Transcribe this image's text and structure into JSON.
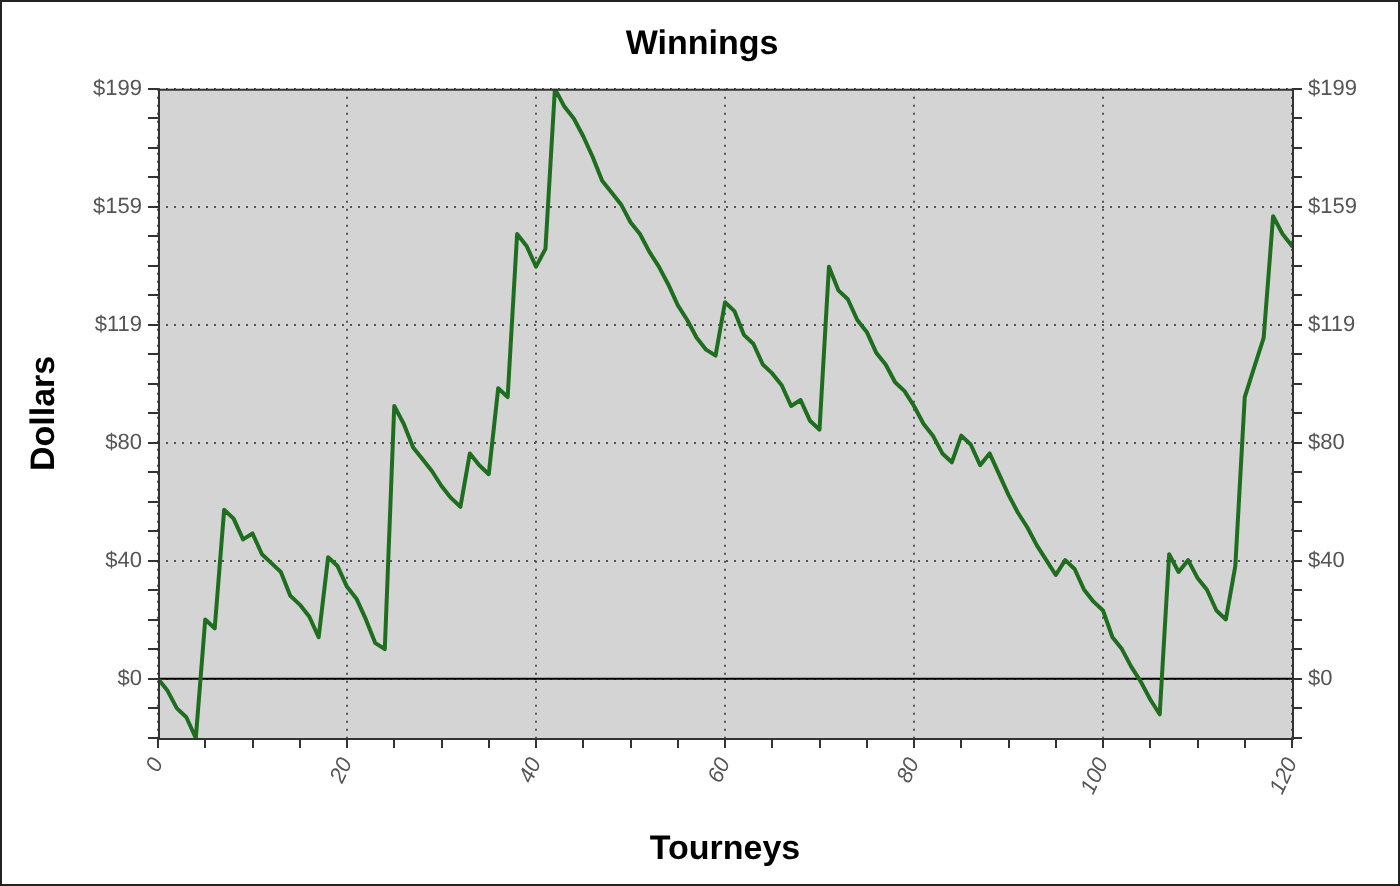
{
  "chart_data": {
    "type": "line",
    "title": "Winnings",
    "xlabel": "Tourneys",
    "ylabel": "Dollars",
    "x": [
      0,
      1,
      2,
      3,
      4,
      5,
      6,
      7,
      8,
      9,
      10,
      11,
      12,
      13,
      14,
      15,
      16,
      17,
      18,
      19,
      20,
      21,
      22,
      23,
      24,
      25,
      26,
      27,
      28,
      29,
      30,
      31,
      32,
      33,
      34,
      35,
      36,
      37,
      38,
      39,
      40,
      41,
      42,
      43,
      44,
      45,
      46,
      47,
      48,
      49,
      50,
      51,
      52,
      53,
      54,
      55,
      56,
      57,
      58,
      59,
      60,
      61,
      62,
      63,
      64,
      65,
      66,
      67,
      68,
      69,
      70,
      71,
      72,
      73,
      74,
      75,
      76,
      77,
      78,
      79,
      80,
      81,
      82,
      83,
      84,
      85,
      86,
      87,
      88,
      89,
      90,
      91,
      92,
      93,
      94,
      95,
      96,
      97,
      98,
      99,
      100,
      101,
      102,
      103,
      104,
      105,
      106,
      107,
      108,
      109,
      110,
      111,
      112,
      113,
      114,
      115,
      116,
      117,
      118,
      119,
      120
    ],
    "series": [
      {
        "color": "#1f6e1f",
        "values": [
          0,
          -4,
          -10,
          -13,
          -20,
          20,
          17,
          57,
          54,
          47,
          49,
          42,
          39,
          36,
          28,
          25,
          21,
          14,
          41,
          38,
          31,
          27,
          20,
          12,
          10,
          92,
          86,
          78,
          74,
          70,
          65,
          61,
          58,
          76,
          72,
          69,
          98,
          95,
          150,
          146,
          139,
          145,
          199,
          193,
          189,
          183,
          176,
          168,
          164,
          160,
          154,
          150,
          144,
          139,
          133,
          126,
          121,
          115,
          111,
          109,
          127,
          124,
          116,
          113,
          106,
          103,
          99,
          92,
          94,
          87,
          84,
          139,
          131,
          128,
          121,
          117,
          110,
          106,
          100,
          97,
          92,
          86,
          82,
          76,
          73,
          82,
          79,
          72,
          76,
          69,
          62,
          56,
          51,
          45,
          40,
          35,
          40,
          37,
          30,
          26,
          23,
          14,
          10,
          4,
          -1,
          -7,
          -12,
          42,
          36,
          40,
          34,
          30,
          23,
          20,
          38,
          95,
          105,
          115,
          156,
          150,
          146
        ]
      }
    ],
    "xlim": [
      0,
      120
    ],
    "xticks": [
      0,
      {
        "value": 5,
        "label": null
      },
      {
        "value": 10,
        "label": null
      },
      {
        "value": 15,
        "label": null
      },
      20,
      {
        "value": 25,
        "label": null
      },
      {
        "value": 30,
        "label": null
      },
      {
        "value": 35,
        "label": null
      },
      40,
      {
        "value": 45,
        "label": null
      },
      {
        "value": 50,
        "label": null
      },
      {
        "value": 55,
        "label": null
      },
      60,
      {
        "value": 65,
        "label": null
      },
      {
        "value": 70,
        "label": null
      },
      {
        "value": 75,
        "label": null
      },
      80,
      {
        "value": 85,
        "label": null
      },
      {
        "value": 90,
        "label": null
      },
      {
        "value": 95,
        "label": null
      },
      100,
      {
        "value": 105,
        "label": null
      },
      {
        "value": 110,
        "label": null
      },
      {
        "value": 115,
        "label": null
      },
      120
    ],
    "ylim": [
      -20,
      199
    ],
    "yticks": [
      {
        "value": -19.9,
        "label": null
      },
      {
        "value": -9.95,
        "label": null
      },
      {
        "value": 0,
        "label": "$0"
      },
      {
        "value": 9.95,
        "label": null
      },
      {
        "value": 19.9,
        "label": null
      },
      {
        "value": 29.85,
        "label": null
      },
      {
        "value": 39.8,
        "label": "$40"
      },
      {
        "value": 49.75,
        "label": null
      },
      {
        "value": 59.7,
        "label": null
      },
      {
        "value": 69.65,
        "label": null
      },
      {
        "value": 79.6,
        "label": "$80"
      },
      {
        "value": 89.55,
        "label": null
      },
      {
        "value": 99.5,
        "label": null
      },
      {
        "value": 109.45,
        "label": null
      },
      {
        "value": 119.4,
        "label": "$119"
      },
      {
        "value": 129.35,
        "label": null
      },
      {
        "value": 139.3,
        "label": null
      },
      {
        "value": 149.25,
        "label": null
      },
      {
        "value": 159.2,
        "label": "$159"
      },
      {
        "value": 169.15,
        "label": null
      },
      {
        "value": 179.1,
        "label": null
      },
      {
        "value": 189.05,
        "label": null
      },
      {
        "value": 199,
        "label": "$199"
      }
    ],
    "y2lim": [
      -20,
      199
    ],
    "y2ticks": [
      {
        "value": -19.9,
        "label": null
      },
      {
        "value": -9.95,
        "label": null
      },
      {
        "value": 0,
        "label": "$0"
      },
      {
        "value": 9.95,
        "label": null
      },
      {
        "value": 19.9,
        "label": null
      },
      {
        "value": 29.85,
        "label": null
      },
      {
        "value": 39.8,
        "label": "$40"
      },
      {
        "value": 49.75,
        "label": null
      },
      {
        "value": 59.7,
        "label": null
      },
      {
        "value": 69.65,
        "label": null
      },
      {
        "value": 79.6,
        "label": "$80"
      },
      {
        "value": 89.55,
        "label": null
      },
      {
        "value": 99.5,
        "label": null
      },
      {
        "value": 109.45,
        "label": null
      },
      {
        "value": 119.4,
        "label": "$119"
      },
      {
        "value": 129.35,
        "label": null
      },
      {
        "value": 139.3,
        "label": null
      },
      {
        "value": 149.25,
        "label": null
      },
      {
        "value": 159.2,
        "label": "$159"
      },
      {
        "value": 169.15,
        "label": null
      },
      {
        "value": 179.1,
        "label": null
      },
      {
        "value": 189.05,
        "label": null
      },
      {
        "value": 199,
        "label": "$199"
      }
    ],
    "ref_lines": [
      {
        "axis": "y",
        "value": 0,
        "color": "#000000",
        "line_style": "solid"
      }
    ],
    "grid": true,
    "legend": false,
    "marker": "none",
    "line_style": "solid"
  }
}
